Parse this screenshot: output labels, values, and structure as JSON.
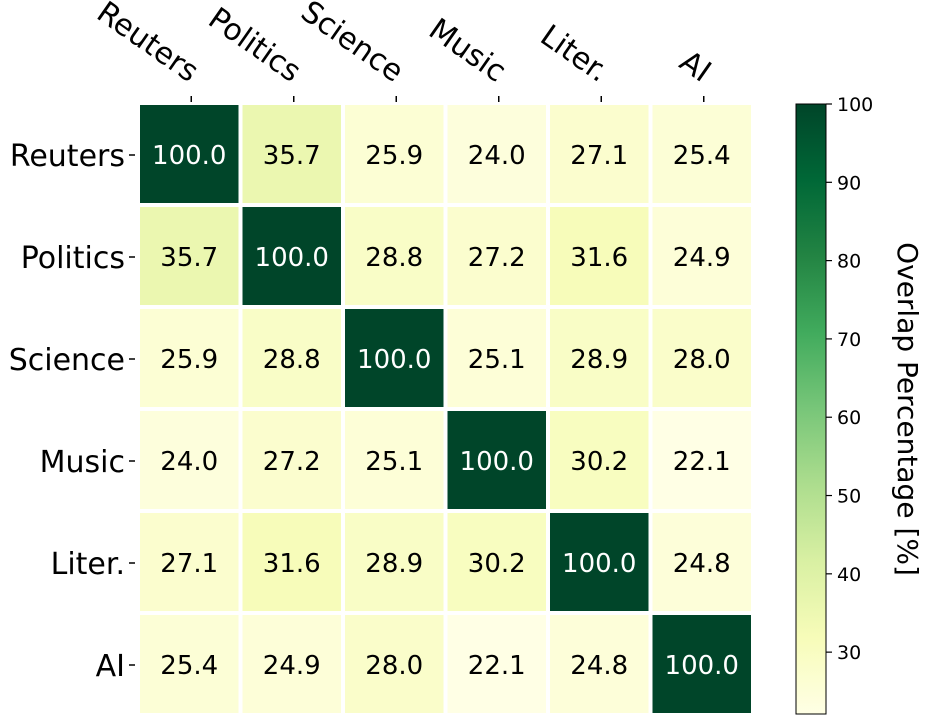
{
  "chart_data": {
    "type": "heatmap",
    "title": "",
    "x_categories": [
      "Reuters",
      "Politics",
      "Science",
      "Music",
      "Liter.",
      "AI"
    ],
    "y_categories": [
      "Reuters",
      "Politics",
      "Science",
      "Music",
      "Liter.",
      "AI"
    ],
    "values": [
      [
        100.0,
        35.7,
        25.9,
        24.0,
        27.1,
        25.4
      ],
      [
        35.7,
        100.0,
        28.8,
        27.2,
        31.6,
        24.9
      ],
      [
        25.9,
        28.8,
        100.0,
        25.1,
        28.9,
        28.0
      ],
      [
        24.0,
        27.2,
        25.1,
        100.0,
        30.2,
        22.1
      ],
      [
        27.1,
        31.6,
        28.9,
        30.2,
        100.0,
        24.8
      ],
      [
        25.4,
        24.9,
        28.0,
        22.1,
        24.8,
        100.0
      ]
    ],
    "value_format": "0.0",
    "colormap": "YlGn",
    "colorbar": {
      "label": "Overlap Percentage [%]",
      "range": [
        22.1,
        100
      ],
      "ticks": [
        30,
        40,
        50,
        60,
        70,
        80,
        90,
        100
      ]
    },
    "x_tick_position": "top",
    "grid": false
  }
}
